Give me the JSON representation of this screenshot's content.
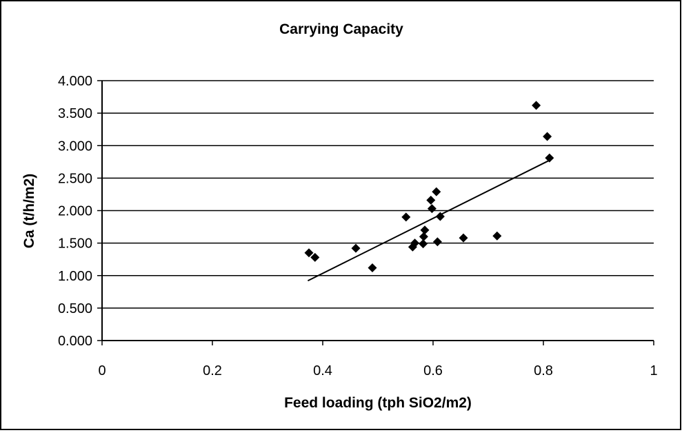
{
  "chart_data": {
    "type": "scatter",
    "title": "Carrying Capacity",
    "xlabel": "Feed loading (tph SiO2/m2)",
    "ylabel": "Ca (t/h/m2)",
    "xlim": [
      0,
      1
    ],
    "ylim": [
      0,
      4
    ],
    "x_ticks": [
      "0",
      "0.2",
      "0.4",
      "0.6",
      "0.8",
      "1"
    ],
    "y_ticks": [
      "0.000",
      "0.500",
      "1.000",
      "1.500",
      "2.000",
      "2.500",
      "3.000",
      "3.500",
      "4.000"
    ],
    "x_tick_values": [
      0,
      0.2,
      0.4,
      0.6,
      0.8,
      1
    ],
    "y_tick_values": [
      0,
      0.5,
      1,
      1.5,
      2,
      2.5,
      3,
      3.5,
      4
    ],
    "grid": "horizontal",
    "legend": "none",
    "series": [
      {
        "marker": "diamond",
        "color": "#000000",
        "points": [
          {
            "x": 0.375,
            "y": 1.35
          },
          {
            "x": 0.386,
            "y": 1.28
          },
          {
            "x": 0.46,
            "y": 1.42
          },
          {
            "x": 0.49,
            "y": 1.12
          },
          {
            "x": 0.551,
            "y": 1.9
          },
          {
            "x": 0.563,
            "y": 1.44
          },
          {
            "x": 0.567,
            "y": 1.5
          },
          {
            "x": 0.582,
            "y": 1.49
          },
          {
            "x": 0.583,
            "y": 1.6
          },
          {
            "x": 0.585,
            "y": 1.7
          },
          {
            "x": 0.596,
            "y": 2.16
          },
          {
            "x": 0.598,
            "y": 2.03
          },
          {
            "x": 0.606,
            "y": 2.29
          },
          {
            "x": 0.608,
            "y": 1.52
          },
          {
            "x": 0.613,
            "y": 1.91
          },
          {
            "x": 0.655,
            "y": 1.58
          },
          {
            "x": 0.716,
            "y": 1.61
          },
          {
            "x": 0.787,
            "y": 3.62
          },
          {
            "x": 0.807,
            "y": 3.14
          },
          {
            "x": 0.811,
            "y": 2.81
          }
        ]
      }
    ],
    "trendline": {
      "type": "linear",
      "color": "#000000",
      "x": [
        0.373,
        0.81
      ],
      "y": [
        0.92,
        2.77
      ]
    }
  }
}
